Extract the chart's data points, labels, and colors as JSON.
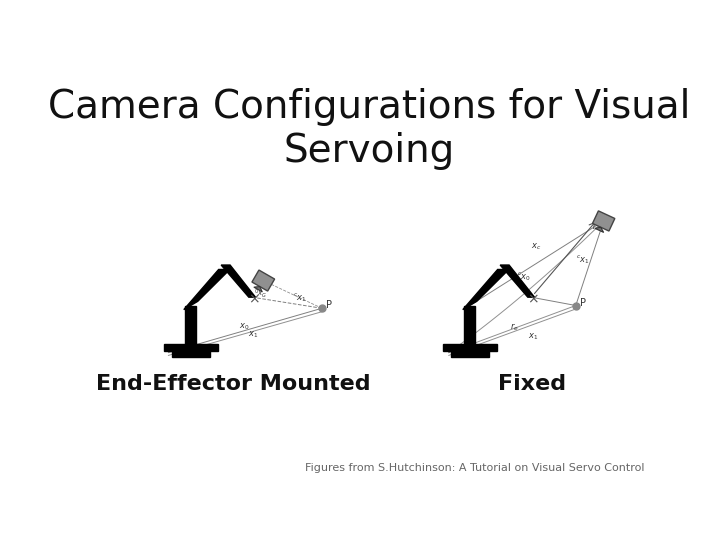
{
  "title": "Camera Configurations for Visual\nServoing",
  "title_fontsize": 28,
  "subtitle_label1": "End-Effector Mounted",
  "subtitle_label2": "Fixed",
  "subtitle_fontsize": 16,
  "footnote": "Figures from S.Hutchinson: A Tutorial on Visual Servo Control",
  "footnote_fontsize": 8,
  "bg_color": "#ffffff",
  "robot_color": "#000000",
  "camera_color": "#888888",
  "line_color": "#555555",
  "label_fontsize": 7
}
